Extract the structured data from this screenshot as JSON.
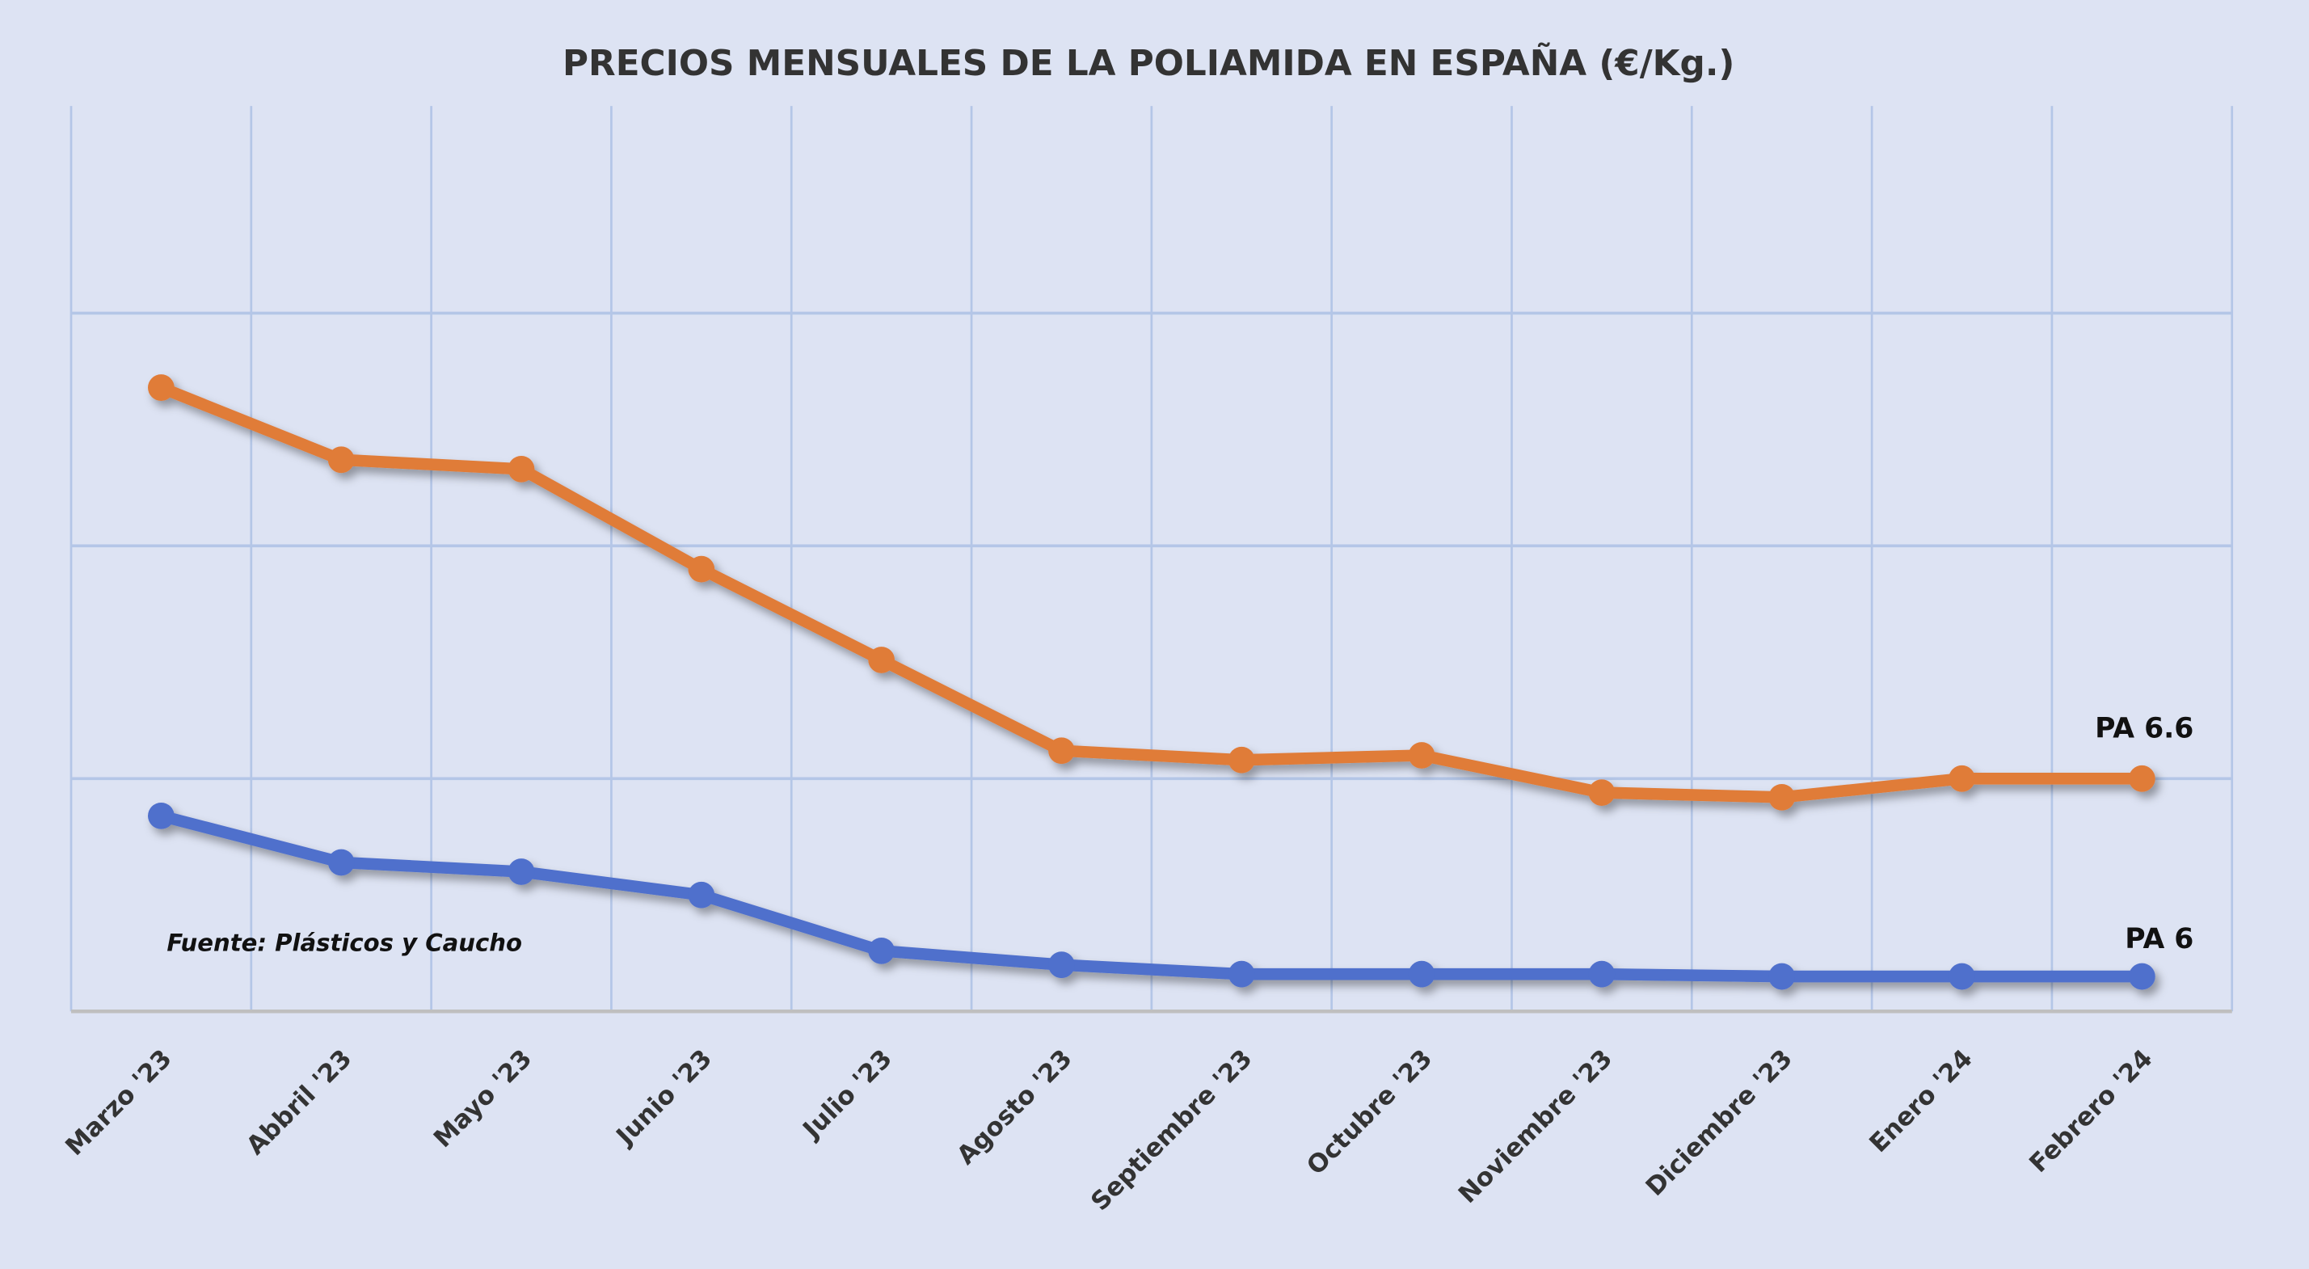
{
  "chart_data": {
    "type": "line",
    "title": "PRECIOS MENSUALES DE LA POLIAMIDA EN ESPAÑA (€/Kg.)",
    "xlabel": "",
    "ylabel": "",
    "categories": [
      "Marzo '23",
      "Abbril '23",
      "Mayo '23",
      "Junio '23",
      "Julio '23",
      "Agosto '23",
      "Septiembre '23",
      "Octubre '23",
      "Noviembre '23",
      "Diciembre '23",
      "Enero '24",
      "Febrero '24"
    ],
    "series": [
      {
        "name": "PA 6.6",
        "color": "#e07b39",
        "values": [
          3.68,
          3.37,
          3.33,
          2.9,
          2.51,
          2.12,
          2.08,
          2.1,
          1.94,
          1.92,
          2.0,
          2.0
        ]
      },
      {
        "name": "PA 6",
        "color": "#4f6fcc",
        "values": [
          1.84,
          1.64,
          1.6,
          1.5,
          1.26,
          1.2,
          1.16,
          1.16,
          1.16,
          1.15,
          1.15,
          1.15
        ]
      }
    ],
    "ylim": [
      1,
      4.89
    ],
    "y_gridlines": [
      2,
      3,
      4
    ],
    "y_tick_labels_shown": false,
    "grid": true,
    "legend": "inline labels at right end of each series",
    "annotation": "Fuente: Plásticos y Caucho",
    "colors": {
      "background": "#dde3f3",
      "grid": "#b4c6e7",
      "axis": "#bfbfbf"
    }
  }
}
